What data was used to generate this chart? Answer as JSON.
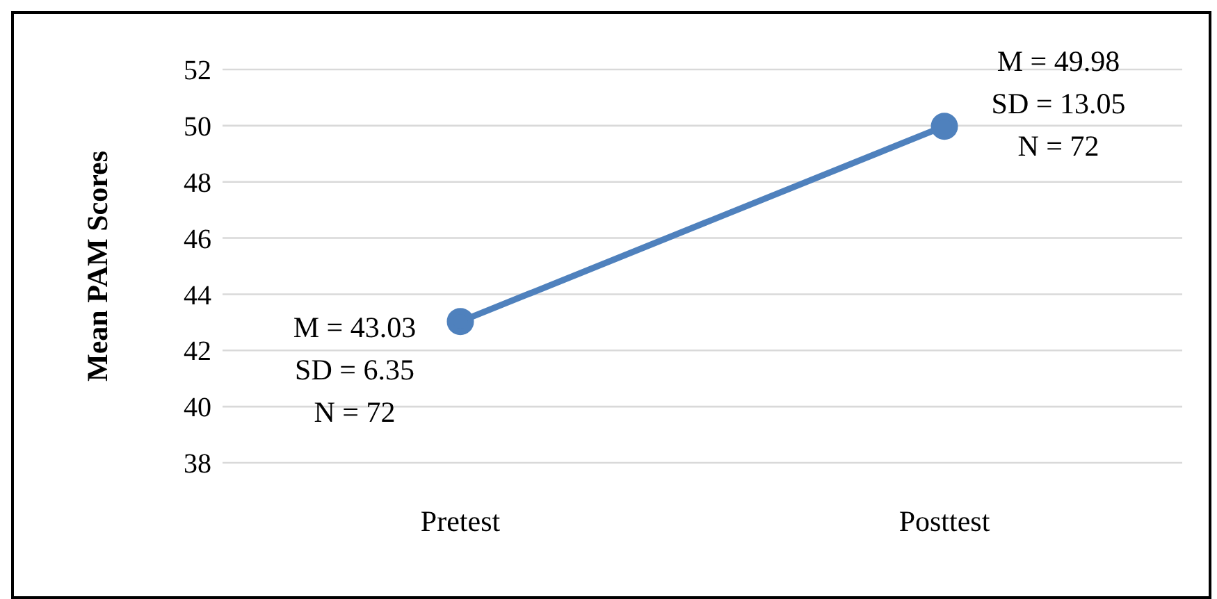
{
  "chart_data": {
    "type": "line",
    "ylabel": "Mean PAM Scores",
    "categories": [
      "Pretest",
      "Posttest"
    ],
    "series": [
      {
        "color": "#4f81bd",
        "values": [
          43.03,
          49.98
        ]
      }
    ],
    "ylim": [
      38,
      52
    ],
    "yticks": [
      38,
      40,
      42,
      44,
      46,
      48,
      50,
      52
    ],
    "grid": "y",
    "legend": false,
    "marker": "circle",
    "line_style": "solid",
    "annotations": [
      {
        "text": "M = 43.03\nSD = 6.35\nN = 72",
        "x": "Pretest",
        "y": 43.03
      },
      {
        "text": "M = 49.98\nSD = 13.05\nN = 72",
        "x": "Posttest",
        "y": 49.98
      }
    ]
  }
}
